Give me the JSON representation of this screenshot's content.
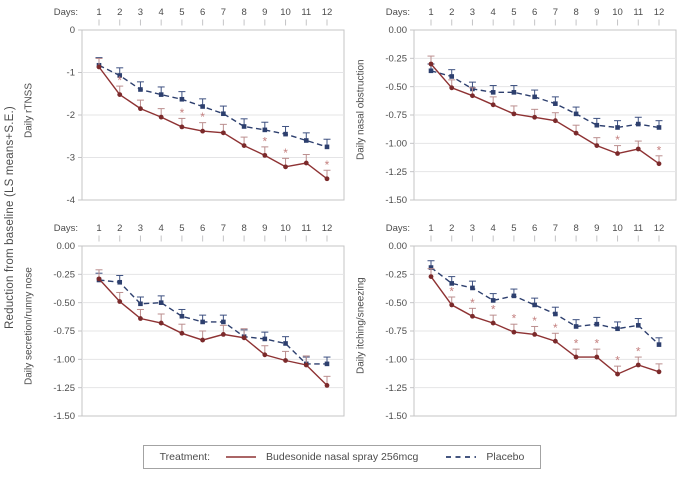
{
  "figure": {
    "shared_ylabel": "Reduction from baseline (LS means+S.E.)",
    "days_label": "Days:",
    "colors": {
      "budesonide_line": "#8E3233",
      "budesonide_marker": "#7B2A2B",
      "budesonide_error": "#BB8E8E",
      "placebo_line": "#2D3F6E",
      "placebo_error": "#3D5080",
      "asterisk": "#C4807F",
      "grid": "#E4E4E6",
      "axis": "#C4C4C6",
      "text": "#4C4C4C"
    }
  },
  "legend": {
    "title": "Treatment:",
    "series": [
      {
        "label": "Budesonide nasal spray 256mcg"
      },
      {
        "label": "Placebo"
      }
    ]
  },
  "chart_data": [
    {
      "type": "line",
      "ylabel": "Daily rTNSS",
      "xlabel": "Days:",
      "x": [
        1,
        2,
        3,
        4,
        5,
        6,
        7,
        8,
        9,
        10,
        11,
        12
      ],
      "ylim": [
        0,
        -4
      ],
      "yticks": [
        "0",
        "-1",
        "-2",
        "-3",
        "-4"
      ],
      "grid": "horizontal",
      "series": [
        {
          "name": "Budesonide nasal spray 256mcg",
          "values": [
            -0.87,
            -1.52,
            -1.85,
            -2.05,
            -2.28,
            -2.38,
            -2.42,
            -2.72,
            -2.95,
            -3.22,
            -3.13,
            -3.5
          ],
          "se": 0.2,
          "significant_days": [
            2,
            5,
            6,
            9,
            10,
            12
          ]
        },
        {
          "name": "Placebo",
          "values": [
            -0.83,
            -1.07,
            -1.4,
            -1.52,
            -1.63,
            -1.8,
            -1.97,
            -2.27,
            -2.35,
            -2.45,
            -2.6,
            -2.75
          ],
          "se": 0.18,
          "significant_days": []
        }
      ]
    },
    {
      "type": "line",
      "ylabel": "Daily nasal obstruction",
      "xlabel": "Days:",
      "x": [
        1,
        2,
        3,
        4,
        5,
        6,
        7,
        8,
        9,
        10,
        11,
        12
      ],
      "ylim": [
        0,
        -1.5
      ],
      "yticks": [
        "0.00",
        "-0.25",
        "-0.50",
        "-0.75",
        "-1.00",
        "-1.25",
        "-1.50"
      ],
      "grid": "horizontal",
      "series": [
        {
          "name": "Budesonide nasal spray 256mcg",
          "values": [
            -0.3,
            -0.51,
            -0.58,
            -0.66,
            -0.74,
            -0.77,
            -0.8,
            -0.91,
            -1.02,
            -1.09,
            -1.05,
            -1.18
          ],
          "se": 0.07,
          "significant_days": [
            10,
            12
          ]
        },
        {
          "name": "Placebo",
          "values": [
            -0.36,
            -0.41,
            -0.52,
            -0.55,
            -0.55,
            -0.59,
            -0.65,
            -0.74,
            -0.84,
            -0.86,
            -0.83,
            -0.86
          ],
          "se": 0.06,
          "significant_days": []
        }
      ]
    },
    {
      "type": "line",
      "ylabel": "Daily secretion/runny nose",
      "xlabel": "Days:",
      "x": [
        1,
        2,
        3,
        4,
        5,
        6,
        7,
        8,
        9,
        10,
        11,
        12
      ],
      "ylim": [
        0,
        -1.5
      ],
      "yticks": [
        "0.00",
        "-0.25",
        "-0.50",
        "-0.75",
        "-1.00",
        "-1.25",
        "-1.50"
      ],
      "grid": "horizontal",
      "series": [
        {
          "name": "Budesonide nasal spray 256mcg",
          "values": [
            -0.29,
            -0.49,
            -0.64,
            -0.68,
            -0.77,
            -0.83,
            -0.78,
            -0.81,
            -0.96,
            -1.01,
            -1.05,
            -1.23
          ],
          "se": 0.08,
          "significant_days": []
        },
        {
          "name": "Placebo",
          "values": [
            -0.3,
            -0.32,
            -0.51,
            -0.5,
            -0.62,
            -0.67,
            -0.67,
            -0.8,
            -0.82,
            -0.86,
            -1.04,
            -1.04
          ],
          "se": 0.06,
          "significant_days": []
        }
      ]
    },
    {
      "type": "line",
      "ylabel": "Daily itching/sneezing",
      "xlabel": "Days:",
      "x": [
        1,
        2,
        3,
        4,
        5,
        6,
        7,
        8,
        9,
        10,
        11,
        12
      ],
      "ylim": [
        0,
        -1.5
      ],
      "yticks": [
        "0.00",
        "-0.25",
        "-0.50",
        "-0.75",
        "-1.00",
        "-1.25",
        "-1.50"
      ],
      "grid": "horizontal",
      "series": [
        {
          "name": "Budesonide nasal spray 256mcg",
          "values": [
            -0.27,
            -0.52,
            -0.62,
            -0.68,
            -0.76,
            -0.78,
            -0.84,
            -0.98,
            -0.98,
            -1.13,
            -1.05,
            -1.11
          ],
          "se": 0.07,
          "significant_days": [
            2,
            3,
            4,
            5,
            6,
            7,
            8,
            9,
            10,
            11
          ]
        },
        {
          "name": "Placebo",
          "values": [
            -0.19,
            -0.33,
            -0.37,
            -0.48,
            -0.44,
            -0.52,
            -0.6,
            -0.71,
            -0.69,
            -0.73,
            -0.7,
            -0.87
          ],
          "se": 0.06,
          "significant_days": []
        }
      ]
    }
  ]
}
